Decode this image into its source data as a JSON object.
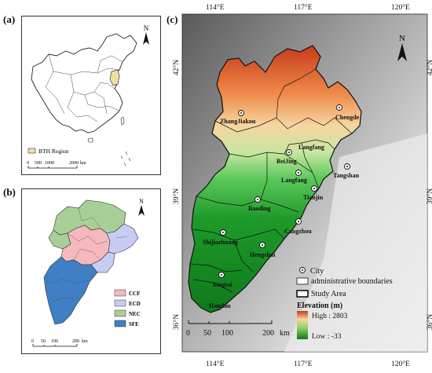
{
  "panel_a": {
    "label": "(a)",
    "legend_label": "BTH Region",
    "legend_color": "#f4dca6",
    "scale": {
      "ticks": [
        "0",
        "500",
        "1000",
        "2000"
      ],
      "unit": "km"
    },
    "north": "N"
  },
  "panel_b": {
    "label": "(b)",
    "north": "N",
    "legend": [
      {
        "label": "CCF",
        "color": "#f4b8bd"
      },
      {
        "label": "ECD",
        "color": "#c7cdf2"
      },
      {
        "label": "NEC",
        "color": "#a8cf97"
      },
      {
        "label": "SFE",
        "color": "#3f7fc4"
      }
    ],
    "scale": {
      "ticks": [
        "0",
        "50",
        "100",
        "200"
      ],
      "unit": "km"
    }
  },
  "panel_c": {
    "label": "(c)",
    "north": "N",
    "lon_ticks": [
      "114°E",
      "117°E",
      "120°E"
    ],
    "lat_ticks": [
      "42°N",
      "39°N",
      "36°N"
    ],
    "cities": [
      {
        "name": "ZhangJiakou"
      },
      {
        "name": "Chengde"
      },
      {
        "name": "Langfang"
      },
      {
        "name": "BeiJing"
      },
      {
        "name": "Langfang"
      },
      {
        "name": "Tianjin"
      },
      {
        "name": "Tangshan"
      },
      {
        "name": "Baoding"
      },
      {
        "name": "Cangzhou"
      },
      {
        "name": "Shijiazhuang"
      },
      {
        "name": "Hengshui"
      },
      {
        "name": "Xingtai"
      },
      {
        "name": "Handan"
      }
    ],
    "legend": {
      "city": "City",
      "admin": "administrative boundaries",
      "study": "Study Area",
      "elevation_title": "Elevation (m)",
      "high": "High : 2803",
      "low": "Low : -33"
    },
    "scale": {
      "ticks": [
        "0",
        "50",
        "100",
        "200"
      ],
      "unit": "km"
    }
  }
}
